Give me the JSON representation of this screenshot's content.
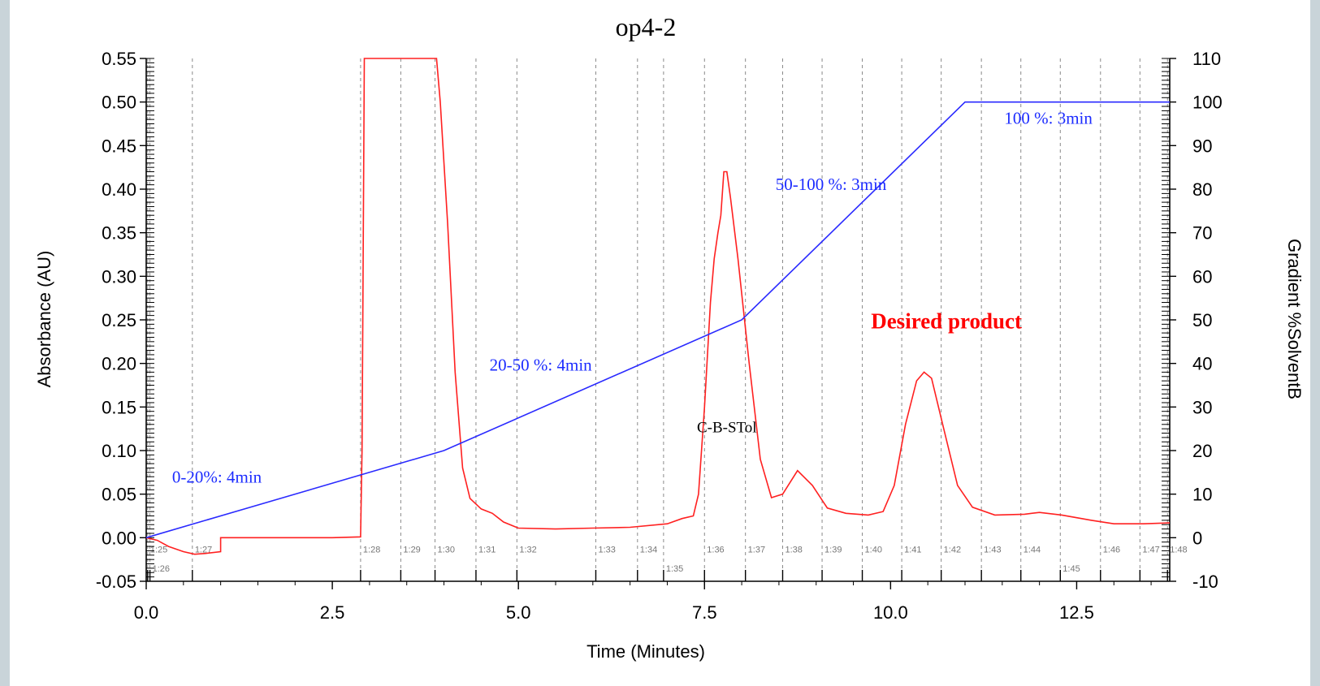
{
  "chart_data": {
    "type": "line",
    "title": "op4-2",
    "xlabel": "Time (Minutes)",
    "ylabel": "Absorbance (AU)",
    "y2label": "Gradient %SolventB",
    "xlim": [
      0,
      13.75
    ],
    "ylim": [
      -0.05,
      0.55
    ],
    "y2lim": [
      -10,
      110
    ],
    "x_ticks": [
      "0.0",
      "2.5",
      "5.0",
      "7.5",
      "10.0",
      "12.5"
    ],
    "y_ticks": [
      "-0.05",
      "0.00",
      "0.05",
      "0.10",
      "0.15",
      "0.20",
      "0.25",
      "0.30",
      "0.35",
      "0.40",
      "0.45",
      "0.50",
      "0.55"
    ],
    "y2_ticks": [
      "-10",
      "0",
      "10",
      "20",
      "30",
      "40",
      "50",
      "60",
      "70",
      "80",
      "90",
      "100",
      "110"
    ],
    "grid": "vertical dashed",
    "colors": {
      "absorbance": "#ff2020",
      "gradient": "#2a2aff",
      "grid": "#8a8a8a"
    },
    "series": [
      {
        "axis": "left",
        "x": [
          0.0,
          0.15,
          0.3,
          0.5,
          0.65,
          0.8,
          1.0,
          1.0,
          2.5,
          2.88,
          2.9,
          2.93,
          2.96,
          3.9,
          3.95,
          4.05,
          4.15,
          4.25,
          4.35,
          4.5,
          4.65,
          4.8,
          5.0,
          5.5,
          6.0,
          6.5,
          7.0,
          7.2,
          7.35,
          7.42,
          7.5,
          7.58,
          7.63,
          7.68,
          7.72,
          7.76,
          7.8,
          7.85,
          7.95,
          8.1,
          8.25,
          8.4,
          8.55,
          8.75,
          8.95,
          9.15,
          9.4,
          9.7,
          9.9,
          10.05,
          10.2,
          10.35,
          10.45,
          10.55,
          10.7,
          10.9,
          11.1,
          11.4,
          11.8,
          12.0,
          12.3,
          12.7,
          13.0,
          13.4,
          13.75
        ],
        "y": [
          0.0,
          -0.003,
          -0.01,
          -0.016,
          -0.019,
          -0.018,
          -0.016,
          0.0,
          0.0,
          0.001,
          0.1,
          0.55,
          0.55,
          0.55,
          0.5,
          0.36,
          0.19,
          0.08,
          0.045,
          0.033,
          0.028,
          0.018,
          0.011,
          0.01,
          0.011,
          0.012,
          0.016,
          0.022,
          0.025,
          0.05,
          0.15,
          0.27,
          0.32,
          0.35,
          0.37,
          0.42,
          0.42,
          0.39,
          0.32,
          0.2,
          0.09,
          0.046,
          0.05,
          0.077,
          0.06,
          0.034,
          0.028,
          0.026,
          0.03,
          0.06,
          0.13,
          0.18,
          0.19,
          0.183,
          0.13,
          0.06,
          0.035,
          0.026,
          0.027,
          0.029,
          0.026,
          0.02,
          0.016,
          0.016,
          0.017
        ]
      },
      {
        "axis": "right",
        "x": [
          0.0,
          4.0,
          8.0,
          11.0,
          13.75
        ],
        "y": [
          0,
          20,
          50,
          100,
          100
        ]
      }
    ],
    "markers_row1": [
      {
        "t": 0.02,
        "label": "1:25"
      },
      {
        "t": 0.62,
        "label": "1:27"
      },
      {
        "t": 2.88,
        "label": "1:28"
      },
      {
        "t": 3.42,
        "label": "1:29"
      },
      {
        "t": 3.88,
        "label": "1:30"
      },
      {
        "t": 4.43,
        "label": "1:31"
      },
      {
        "t": 4.98,
        "label": "1:32"
      },
      {
        "t": 6.04,
        "label": "1:33"
      },
      {
        "t": 6.6,
        "label": "1:34"
      },
      {
        "t": 7.5,
        "label": "1:36"
      },
      {
        "t": 8.05,
        "label": "1:37"
      },
      {
        "t": 8.55,
        "label": "1:38"
      },
      {
        "t": 9.08,
        "label": "1:39"
      },
      {
        "t": 9.62,
        "label": "1:40"
      },
      {
        "t": 10.15,
        "label": "1:41"
      },
      {
        "t": 10.68,
        "label": "1:42"
      },
      {
        "t": 11.22,
        "label": "1:43"
      },
      {
        "t": 11.75,
        "label": "1:44"
      },
      {
        "t": 12.82,
        "label": "1:46"
      },
      {
        "t": 13.35,
        "label": "1:47"
      },
      {
        "t": 13.72,
        "label": "1:48"
      }
    ],
    "markers_row2": [
      {
        "t": 0.05,
        "label": "1:26"
      },
      {
        "t": 6.95,
        "label": "1:35"
      },
      {
        "t": 12.28,
        "label": "1:45"
      }
    ],
    "annotations": [
      {
        "text": "0-20%: 4min",
        "x": 0.95,
        "y": 0.063,
        "style": "blue"
      },
      {
        "text": "20-50 %: 4min",
        "x": 5.3,
        "y": 0.192,
        "style": "blue"
      },
      {
        "text": "50-100 %: 3min",
        "x": 9.2,
        "y": 0.399,
        "style": "blue"
      },
      {
        "text": "100 %: 3min",
        "x": 12.12,
        "y": 0.475,
        "style": "blue"
      },
      {
        "text": "C-B-STol",
        "x": 7.8,
        "y": 0.121,
        "style": "black"
      },
      {
        "text": "Desired product",
        "x": 10.75,
        "y": 0.24,
        "style": "red"
      }
    ]
  }
}
